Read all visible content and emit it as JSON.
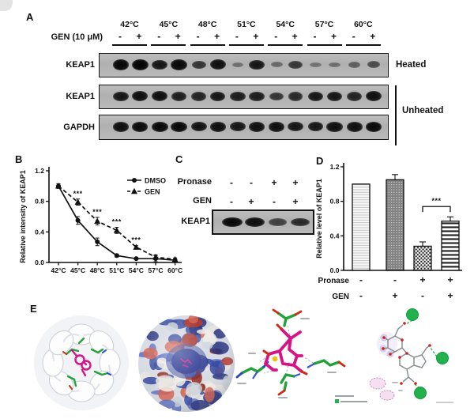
{
  "figure": {
    "background": "#ffffff"
  },
  "panel_a": {
    "label": "A",
    "gen_label": "GEN (10 μM)",
    "minus": "-",
    "plus": "+",
    "temperatures": [
      "42°C",
      "45°C",
      "48°C",
      "51°C",
      "54°C",
      "57°C",
      "60°C"
    ],
    "blot_rows": [
      {
        "label": "KEAP1",
        "condition": "Heated",
        "bands": [
          0.97,
          1,
          0.85,
          0.95,
          0.62,
          0.9,
          0.18,
          0.85,
          0.22,
          0.6,
          0.15,
          0.18,
          0.3,
          0.45
        ]
      },
      {
        "label": "KEAP1",
        "condition": "Unheated",
        "bands": [
          0.85,
          0.9,
          0.9,
          0.78,
          0.75,
          0.85,
          0.8,
          0.8,
          0.62,
          0.7,
          0.85,
          0.85,
          0.75,
          0.9
        ]
      },
      {
        "label": "GAPDH",
        "condition": "Unheated",
        "bands": [
          0.9,
          0.95,
          0.95,
          0.95,
          0.88,
          0.9,
          0.85,
          0.9,
          0.9,
          0.85,
          0.85,
          0.9,
          0.9,
          0.95
        ]
      }
    ],
    "right_labels": {
      "heated": "Heated",
      "unheated": "Unheated"
    }
  },
  "panel_b": {
    "label": "B"
  },
  "panel_c": {
    "label": "C",
    "condition_rows": [
      {
        "label": "Pronase",
        "signs": [
          "-",
          "-",
          "+",
          "+"
        ]
      },
      {
        "label": "GEN",
        "signs": [
          "-",
          "+",
          "-",
          "+"
        ]
      }
    ],
    "blot_label": "KEAP1",
    "bands": [
      0.95,
      0.9,
      0.5,
      0.68
    ]
  },
  "panel_d": {
    "label": "D"
  },
  "panel_e": {
    "label": "E",
    "images": [
      "keap1-kelch-domain-ribbon-with-ligand",
      "electrostatic-surface-with-ligand-pocket",
      "binding-site-3d-interactions",
      "ligand-interaction-2d-diagram"
    ]
  },
  "chart_data": [
    {
      "type": "line",
      "panel": "B",
      "title": "",
      "xlabel": "",
      "ylabel": "Relative intensity of KEAP1",
      "categories": [
        "42°C",
        "45°C",
        "48°C",
        "51°C",
        "54°C",
        "57°C",
        "60°C"
      ],
      "ylim": [
        0,
        1.2
      ],
      "yticks": [
        0,
        0.4,
        0.8,
        1.2
      ],
      "grid": false,
      "legend_position": "top-right",
      "series": [
        {
          "name": "DMSO",
          "marker": "circle",
          "line": "solid",
          "values": [
            1.0,
            0.55,
            0.27,
            0.09,
            0.05,
            0.05,
            0.03
          ],
          "errors": [
            0.03,
            0.05,
            0.05,
            0.02,
            0.01,
            0.04,
            0.01
          ]
        },
        {
          "name": "GEN",
          "marker": "triangle",
          "line": "dashed",
          "values": [
            1.0,
            0.79,
            0.54,
            0.42,
            0.2,
            0.07,
            0.04
          ],
          "errors": [
            0.03,
            0.04,
            0.05,
            0.04,
            0.02,
            0.03,
            0.02
          ]
        }
      ],
      "significance": [
        {
          "index": 1,
          "label": "***"
        },
        {
          "index": 2,
          "label": "***"
        },
        {
          "index": 3,
          "label": "***"
        },
        {
          "index": 4,
          "label": "***"
        }
      ]
    },
    {
      "type": "bar",
      "panel": "D",
      "title": "",
      "xlabel": "",
      "ylabel": "Relative level of KEAP1",
      "ylim": [
        0,
        1.2
      ],
      "yticks": [
        0,
        0.4,
        0.8,
        1.2
      ],
      "values": [
        1.0,
        1.05,
        0.28,
        0.57
      ],
      "errors": [
        0,
        0.06,
        0.05,
        0.05
      ],
      "bar_patterns": [
        "light-horizontal-lines",
        "dark-dotted",
        "checker-dots",
        "horizontal-stripes"
      ],
      "x_rows": [
        {
          "label": "Pronase",
          "signs": [
            "-",
            "-",
            "+",
            "+"
          ]
        },
        {
          "label": "GEN",
          "signs": [
            "-",
            "+",
            "-",
            "+"
          ]
        }
      ],
      "significance": {
        "pair": [
          2,
          3
        ],
        "label": "***",
        "height": 0.74
      }
    }
  ],
  "colors": {
    "band": "#111111",
    "blot_bg": "#b7b7b7",
    "accent_magenta": "#d61486",
    "residue_green": "#21a23a",
    "hbond_green": "#22b14c",
    "surface_red": "#b23527",
    "surface_blue": "#32479f"
  }
}
